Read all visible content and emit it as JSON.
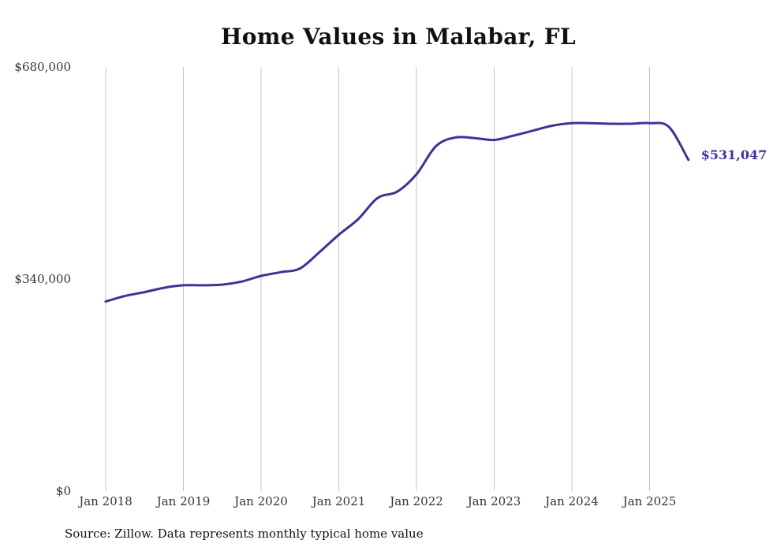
{
  "chart_data": {
    "type": "line",
    "title": "Home Values in Malabar, FL",
    "source": "Source: Zillow. Data represents monthly typical home value",
    "x_tick_labels": [
      "Jan 2018",
      "Jan 2019",
      "Jan 2020",
      "Jan 2021",
      "Jan 2022",
      "Jan 2023",
      "Jan 2024",
      "Jan 2025"
    ],
    "y_tick_labels": [
      "$0",
      "$340,000",
      "$680,000"
    ],
    "y_ticks": [
      0,
      340000,
      680000
    ],
    "ylim": [
      0,
      680000
    ],
    "x_start": "2018-01",
    "grid": "vertical",
    "line_color": "#3a3596",
    "end_label": "$531,047",
    "series": [
      {
        "x": [
          "2018-01",
          "2018-04",
          "2018-07",
          "2018-10",
          "2019-01",
          "2019-04",
          "2019-07",
          "2019-10",
          "2020-01",
          "2020-04",
          "2020-07",
          "2020-10",
          "2021-01",
          "2021-04",
          "2021-07",
          "2021-10",
          "2022-01",
          "2022-04",
          "2022-07",
          "2022-10",
          "2023-01",
          "2023-04",
          "2023-07",
          "2023-10",
          "2024-01",
          "2024-04",
          "2024-07",
          "2024-10",
          "2025-01",
          "2025-04",
          "2025-07"
        ],
        "values": [
          304000,
          313000,
          319000,
          326000,
          330000,
          330000,
          331000,
          336000,
          345000,
          351000,
          357000,
          383000,
          411000,
          436000,
          470000,
          480000,
          508000,
          553000,
          567000,
          566000,
          563000,
          570000,
          578000,
          586000,
          590000,
          590000,
          589000,
          589000,
          590000,
          584000,
          531047
        ]
      }
    ]
  }
}
